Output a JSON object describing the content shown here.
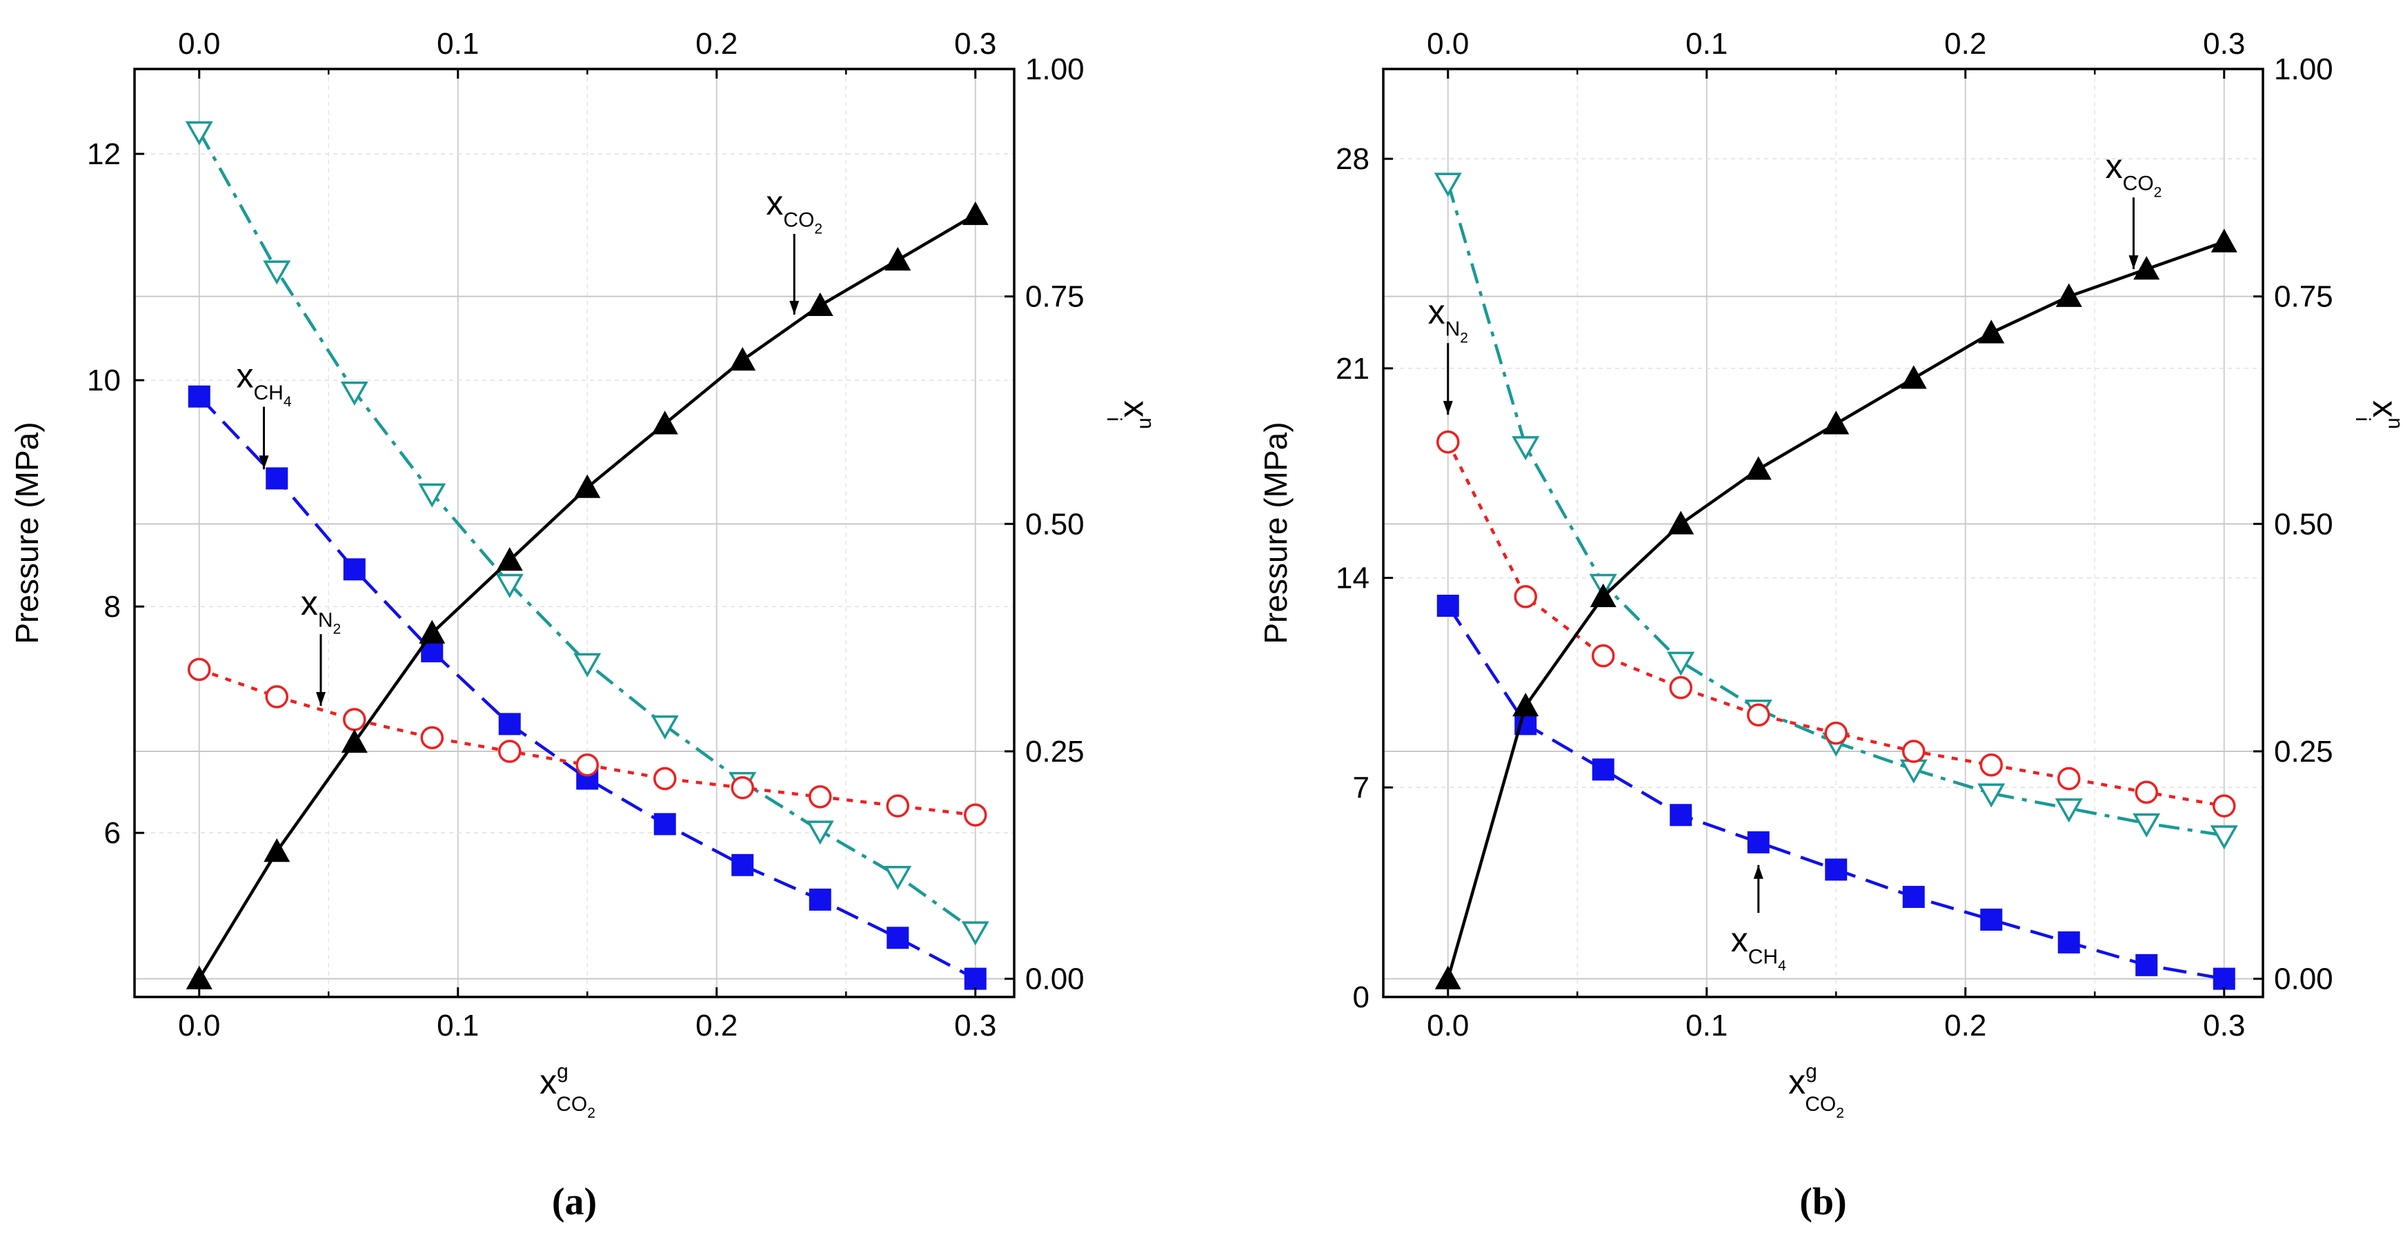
{
  "chart_data": [
    {
      "panel": "a",
      "caption": "(a)",
      "type": "line",
      "title": "",
      "xlabel": {
        "main": "x",
        "sup": "g",
        "sub": "CO",
        "subsub": "2"
      },
      "ylabel": "Pressure (MPa)",
      "y2label": {
        "main": "x",
        "sup": "n",
        "sub": "i"
      },
      "xlim": [
        -0.025,
        0.315
      ],
      "ylim": [
        4.55,
        12.75
      ],
      "y2lim": [
        -0.02,
        1.0
      ],
      "xticks": [
        0.0,
        0.1,
        0.2,
        0.3
      ],
      "xtick_labels": [
        "0.0",
        "0.1",
        "0.2",
        "0.3"
      ],
      "xticks_top": [
        0.0,
        0.1,
        0.2,
        0.3
      ],
      "xtick_labels_top": [
        "0.0",
        "0.1",
        "0.2",
        "0.3"
      ],
      "yticks": [
        6,
        8,
        10,
        12
      ],
      "ytick_labels": [
        "6",
        "8",
        "10",
        "12"
      ],
      "y2ticks": [
        0.0,
        0.25,
        0.5,
        0.75,
        1.0
      ],
      "y2tick_labels": [
        "0.00",
        "0.25",
        "0.50",
        "0.75",
        "1.00"
      ],
      "grid": true,
      "series": [
        {
          "name": "Pressure",
          "axis": "y",
          "marker": "triangle-down-open",
          "color": "#1a9a96",
          "dash": "dashdot",
          "x": [
            0.0,
            0.03,
            0.06,
            0.09,
            0.12,
            0.15,
            0.18,
            0.21,
            0.24,
            0.27,
            0.3
          ],
          "values": [
            12.2,
            10.97,
            9.9,
            9.0,
            8.2,
            7.5,
            6.95,
            6.45,
            6.02,
            5.62,
            5.13
          ]
        },
        {
          "name": "x_CH4",
          "axis": "y2",
          "marker": "square-filled",
          "color": "#1010ee",
          "dash": "dash",
          "x": [
            0.0,
            0.03,
            0.06,
            0.09,
            0.12,
            0.15,
            0.18,
            0.21,
            0.24,
            0.27,
            0.3
          ],
          "values": [
            0.64,
            0.55,
            0.45,
            0.36,
            0.28,
            0.22,
            0.17,
            0.125,
            0.087,
            0.045,
            0.0
          ]
        },
        {
          "name": "x_N2",
          "axis": "y2",
          "marker": "circle-open",
          "color": "#ee2020",
          "dash": "dot",
          "x": [
            0.0,
            0.03,
            0.06,
            0.09,
            0.12,
            0.15,
            0.18,
            0.21,
            0.24,
            0.27,
            0.3
          ],
          "values": [
            0.34,
            0.31,
            0.285,
            0.265,
            0.25,
            0.235,
            0.22,
            0.21,
            0.2,
            0.19,
            0.18
          ]
        },
        {
          "name": "x_CO2",
          "axis": "y2",
          "marker": "triangle-up-filled",
          "color": "#000000",
          "dash": "solid",
          "x": [
            0.0,
            0.03,
            0.06,
            0.09,
            0.12,
            0.15,
            0.18,
            0.21,
            0.24,
            0.27,
            0.3
          ],
          "values": [
            0.0,
            0.14,
            0.26,
            0.38,
            0.46,
            0.54,
            0.61,
            0.68,
            0.74,
            0.79,
            0.84
          ]
        }
      ],
      "annotations": [
        {
          "text": "x",
          "sub": "CO",
          "subsub": "2",
          "x": 0.23,
          "y2": 0.84,
          "arrow_to_y2": 0.73
        },
        {
          "text": "x",
          "sub": "CH",
          "subsub": "4",
          "x": 0.025,
          "y2": 0.65,
          "arrow_to_y2": 0.56
        },
        {
          "text": "x",
          "sub": "N",
          "subsub": "2",
          "x": 0.047,
          "y2": 0.4,
          "arrow_to_y2": 0.3
        }
      ]
    },
    {
      "panel": "b",
      "caption": "(b)",
      "type": "line",
      "title": "",
      "xlabel": {
        "main": "x",
        "sup": "g",
        "sub": "CO",
        "subsub": "2"
      },
      "ylabel": "Pressure (MPa)",
      "y2label": {
        "main": "x",
        "sup": "n",
        "sub": "i"
      },
      "xlim": [
        -0.025,
        0.315
      ],
      "ylim": [
        0,
        31
      ],
      "y2lim": [
        -0.02,
        1.0
      ],
      "xticks": [
        0.0,
        0.1,
        0.2,
        0.3
      ],
      "xtick_labels": [
        "0.0",
        "0.1",
        "0.2",
        "0.3"
      ],
      "xticks_top": [
        0.0,
        0.1,
        0.2,
        0.3
      ],
      "xtick_labels_top": [
        "0.0",
        "0.1",
        "0.2",
        "0.3"
      ],
      "yticks": [
        0,
        7,
        14,
        21,
        28
      ],
      "ytick_labels": [
        "0",
        "7",
        "14",
        "21",
        "28"
      ],
      "y2ticks": [
        0.0,
        0.25,
        0.5,
        0.75,
        1.0
      ],
      "y2tick_labels": [
        "0.00",
        "0.25",
        "0.50",
        "0.75",
        "1.00"
      ],
      "grid": true,
      "series": [
        {
          "name": "Pressure",
          "axis": "y",
          "marker": "triangle-down-open",
          "color": "#1a9a96",
          "dash": "dashdot",
          "x": [
            0.0,
            0.03,
            0.06,
            0.09,
            0.12,
            0.15,
            0.18,
            0.21,
            0.24,
            0.27,
            0.3
          ],
          "values": [
            27.2,
            18.4,
            13.8,
            11.2,
            9.6,
            8.5,
            7.6,
            6.8,
            6.3,
            5.8,
            5.4
          ]
        },
        {
          "name": "x_CH4",
          "axis": "y2",
          "marker": "square-filled",
          "color": "#1010ee",
          "dash": "dash",
          "x": [
            0.0,
            0.03,
            0.06,
            0.09,
            0.12,
            0.15,
            0.18,
            0.21,
            0.24,
            0.27,
            0.3
          ],
          "values": [
            0.41,
            0.28,
            0.23,
            0.18,
            0.15,
            0.12,
            0.09,
            0.065,
            0.04,
            0.015,
            0.0
          ]
        },
        {
          "name": "x_N2",
          "axis": "y2",
          "marker": "circle-open",
          "color": "#ee2020",
          "dash": "dot",
          "x": [
            0.0,
            0.03,
            0.06,
            0.09,
            0.12,
            0.15,
            0.18,
            0.21,
            0.24,
            0.27,
            0.3
          ],
          "values": [
            0.59,
            0.42,
            0.355,
            0.32,
            0.29,
            0.27,
            0.25,
            0.235,
            0.22,
            0.205,
            0.19
          ]
        },
        {
          "name": "x_CO2",
          "axis": "y2",
          "marker": "triangle-up-filled",
          "color": "#000000",
          "dash": "solid",
          "x": [
            0.0,
            0.03,
            0.06,
            0.09,
            0.12,
            0.15,
            0.18,
            0.21,
            0.24,
            0.27,
            0.3
          ],
          "values": [
            0.0,
            0.3,
            0.42,
            0.5,
            0.56,
            0.61,
            0.66,
            0.71,
            0.75,
            0.78,
            0.81
          ]
        }
      ],
      "annotations": [
        {
          "text": "x",
          "sub": "CO",
          "subsub": "2",
          "x": 0.265,
          "y2": 0.88,
          "arrow_to_y2": 0.78
        },
        {
          "text": "x",
          "sub": "N",
          "subsub": "2",
          "x": 0.0,
          "y2": 0.72,
          "arrow_to_y2": 0.62
        },
        {
          "text": "x",
          "sub": "CH",
          "subsub": "4",
          "x": 0.12,
          "y2": 0.03,
          "arrow_to_y2": 0.125
        }
      ]
    }
  ]
}
